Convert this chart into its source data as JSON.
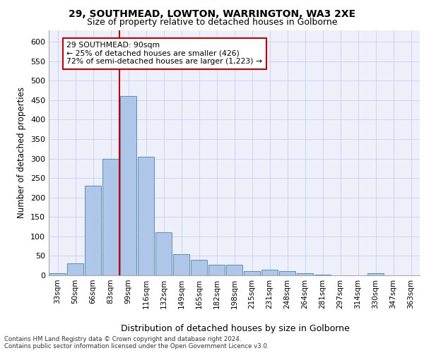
{
  "title1": "29, SOUTHMEAD, LOWTON, WARRINGTON, WA3 2XE",
  "title2": "Size of property relative to detached houses in Golborne",
  "xlabel": "Distribution of detached houses by size in Golborne",
  "ylabel": "Number of detached properties",
  "bar_labels": [
    "33sqm",
    "50sqm",
    "66sqm",
    "83sqm",
    "99sqm",
    "116sqm",
    "132sqm",
    "149sqm",
    "165sqm",
    "182sqm",
    "198sqm",
    "215sqm",
    "231sqm",
    "248sqm",
    "264sqm",
    "281sqm",
    "297sqm",
    "314sqm",
    "330sqm",
    "347sqm",
    "363sqm"
  ],
  "bar_values": [
    5,
    30,
    230,
    300,
    460,
    305,
    110,
    55,
    40,
    27,
    27,
    10,
    15,
    10,
    5,
    1,
    0,
    0,
    5,
    0,
    0
  ],
  "bar_color": "#aec6e8",
  "bar_edge_color": "#5b8db8",
  "vline_color": "#cc0000",
  "annotation_text": "29 SOUTHMEAD: 90sqm\n← 25% of detached houses are smaller (426)\n72% of semi-detached houses are larger (1,223) →",
  "annotation_box_facecolor": "#ffffff",
  "annotation_box_edgecolor": "#cc0000",
  "ylim": [
    0,
    630
  ],
  "yticks": [
    0,
    50,
    100,
    150,
    200,
    250,
    300,
    350,
    400,
    450,
    500,
    550,
    600
  ],
  "background_color": "#edf0fb",
  "footer1": "Contains HM Land Registry data © Crown copyright and database right 2024.",
  "footer2": "Contains public sector information licensed under the Open Government Licence v3.0."
}
